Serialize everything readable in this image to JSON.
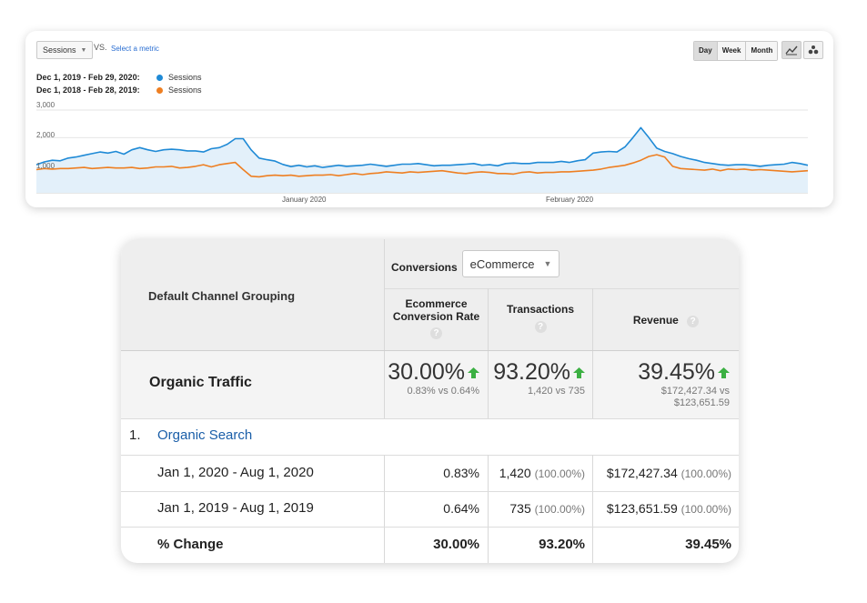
{
  "chart": {
    "metric_select": "Sessions",
    "vs_label": "VS.",
    "select_metric_link": "Select a metric",
    "interval_buttons": [
      "Day",
      "Week",
      "Month"
    ],
    "active_interval": "Day",
    "view_icons": [
      "line-chart-icon",
      "motion-chart-icon"
    ],
    "legend": [
      {
        "range": "Dec 1, 2019 - Feb 29, 2020:",
        "series": "Sessions",
        "color": "#1f8ad6"
      },
      {
        "range": "Dec 1, 2018 - Feb 28, 2019:",
        "series": "Sessions",
        "color": "#ee7f22"
      }
    ],
    "y_ticks": [
      "3,000",
      "2,000",
      "1,000"
    ],
    "x_ticks": [
      "January 2020",
      "February 2020"
    ]
  },
  "chart_data": {
    "type": "line",
    "title": "",
    "ylim": [
      0,
      3000
    ],
    "yticks": [
      1000,
      2000,
      3000
    ],
    "xticks": [
      "January 2020",
      "February 2020"
    ],
    "grid": true,
    "legend_position": "top-left",
    "series": [
      {
        "name": "Sessions",
        "period": "Dec 1, 2019 - Feb 29, 2020",
        "color": "#1f8ad6",
        "area": true,
        "values": [
          1020,
          1120,
          1180,
          1160,
          1260,
          1300,
          1360,
          1420,
          1480,
          1440,
          1500,
          1400,
          1560,
          1640,
          1560,
          1500,
          1560,
          1580,
          1560,
          1520,
          1520,
          1480,
          1600,
          1640,
          1760,
          1960,
          1960,
          1560,
          1260,
          1200,
          1150,
          1030,
          950,
          1000,
          940,
          980,
          920,
          960,
          1000,
          960,
          980,
          1000,
          1040,
          1000,
          960,
          1000,
          1040,
          1040,
          1060,
          1020,
          980,
          1000,
          1000,
          1020,
          1040,
          1060,
          1000,
          1020,
          980,
          1060,
          1080,
          1060,
          1060,
          1100,
          1100,
          1100,
          1140,
          1100,
          1160,
          1200,
          1440,
          1480,
          1500,
          1480,
          1660,
          2000,
          2360,
          2000,
          1620,
          1500,
          1420,
          1320,
          1240,
          1180,
          1100,
          1060,
          1020,
          1000,
          1020,
          1020,
          1000,
          960,
          1000,
          1020,
          1040,
          1100,
          1060,
          1000
        ]
      },
      {
        "name": "Sessions",
        "period": "Dec 1, 2018 - Feb 28, 2019",
        "color": "#ee7f22",
        "area": false,
        "values": [
          840,
          880,
          860,
          880,
          880,
          900,
          920,
          880,
          900,
          920,
          900,
          900,
          920,
          880,
          900,
          940,
          940,
          960,
          900,
          920,
          960,
          1020,
          940,
          1020,
          1060,
          1100,
          840,
          600,
          580,
          620,
          640,
          620,
          640,
          600,
          620,
          640,
          640,
          660,
          620,
          660,
          700,
          660,
          700,
          720,
          760,
          740,
          720,
          760,
          740,
          760,
          780,
          800,
          760,
          720,
          700,
          740,
          760,
          740,
          700,
          700,
          680,
          740,
          760,
          720,
          740,
          740,
          760,
          760,
          780,
          800,
          820,
          860,
          920,
          960,
          1000,
          1080,
          1180,
          1320,
          1380,
          1300,
          960,
          880,
          860,
          840,
          820,
          860,
          800,
          860,
          840,
          860,
          820,
          840,
          820,
          800,
          780,
          760,
          780,
          800
        ]
      }
    ]
  },
  "table": {
    "header": {
      "dimension_label": "Default Channel Grouping",
      "conversions_label": "Conversions",
      "conversions_select": "eCommerce",
      "columns": [
        "Ecommerce Conversion Rate",
        "Transactions",
        "Revenue"
      ],
      "help_symbol": "?"
    },
    "summary": {
      "label": "Organic Traffic",
      "values": [
        {
          "main": "30.00%",
          "sub1": "0.83% vs 0.64%",
          "sub2": ""
        },
        {
          "main": "93.20%",
          "sub1": "1,420 vs 735",
          "sub2": ""
        },
        {
          "main": "39.45%",
          "sub1": "$172,427.34 vs",
          "sub2": "$123,651.59"
        }
      ],
      "trend_color": "#3cb043"
    },
    "group": {
      "index": "1.",
      "label": "Organic Search"
    },
    "rows": [
      {
        "label": "Jan 1, 2020 - Aug 1, 2020",
        "rate": "0.83%",
        "transactions": "1,420",
        "transactions_pct": "(100.00%)",
        "revenue": "$172,427.34",
        "revenue_pct": "(100.00%)"
      },
      {
        "label": "Jan 1, 2019 - Aug 1, 2019",
        "rate": "0.64%",
        "transactions": "735",
        "transactions_pct": "(100.00%)",
        "revenue": "$123,651.59",
        "revenue_pct": "(100.00%)"
      }
    ],
    "change": {
      "label": "% Change",
      "rate": "30.00%",
      "transactions": "93.20%",
      "revenue": "39.45%"
    }
  }
}
